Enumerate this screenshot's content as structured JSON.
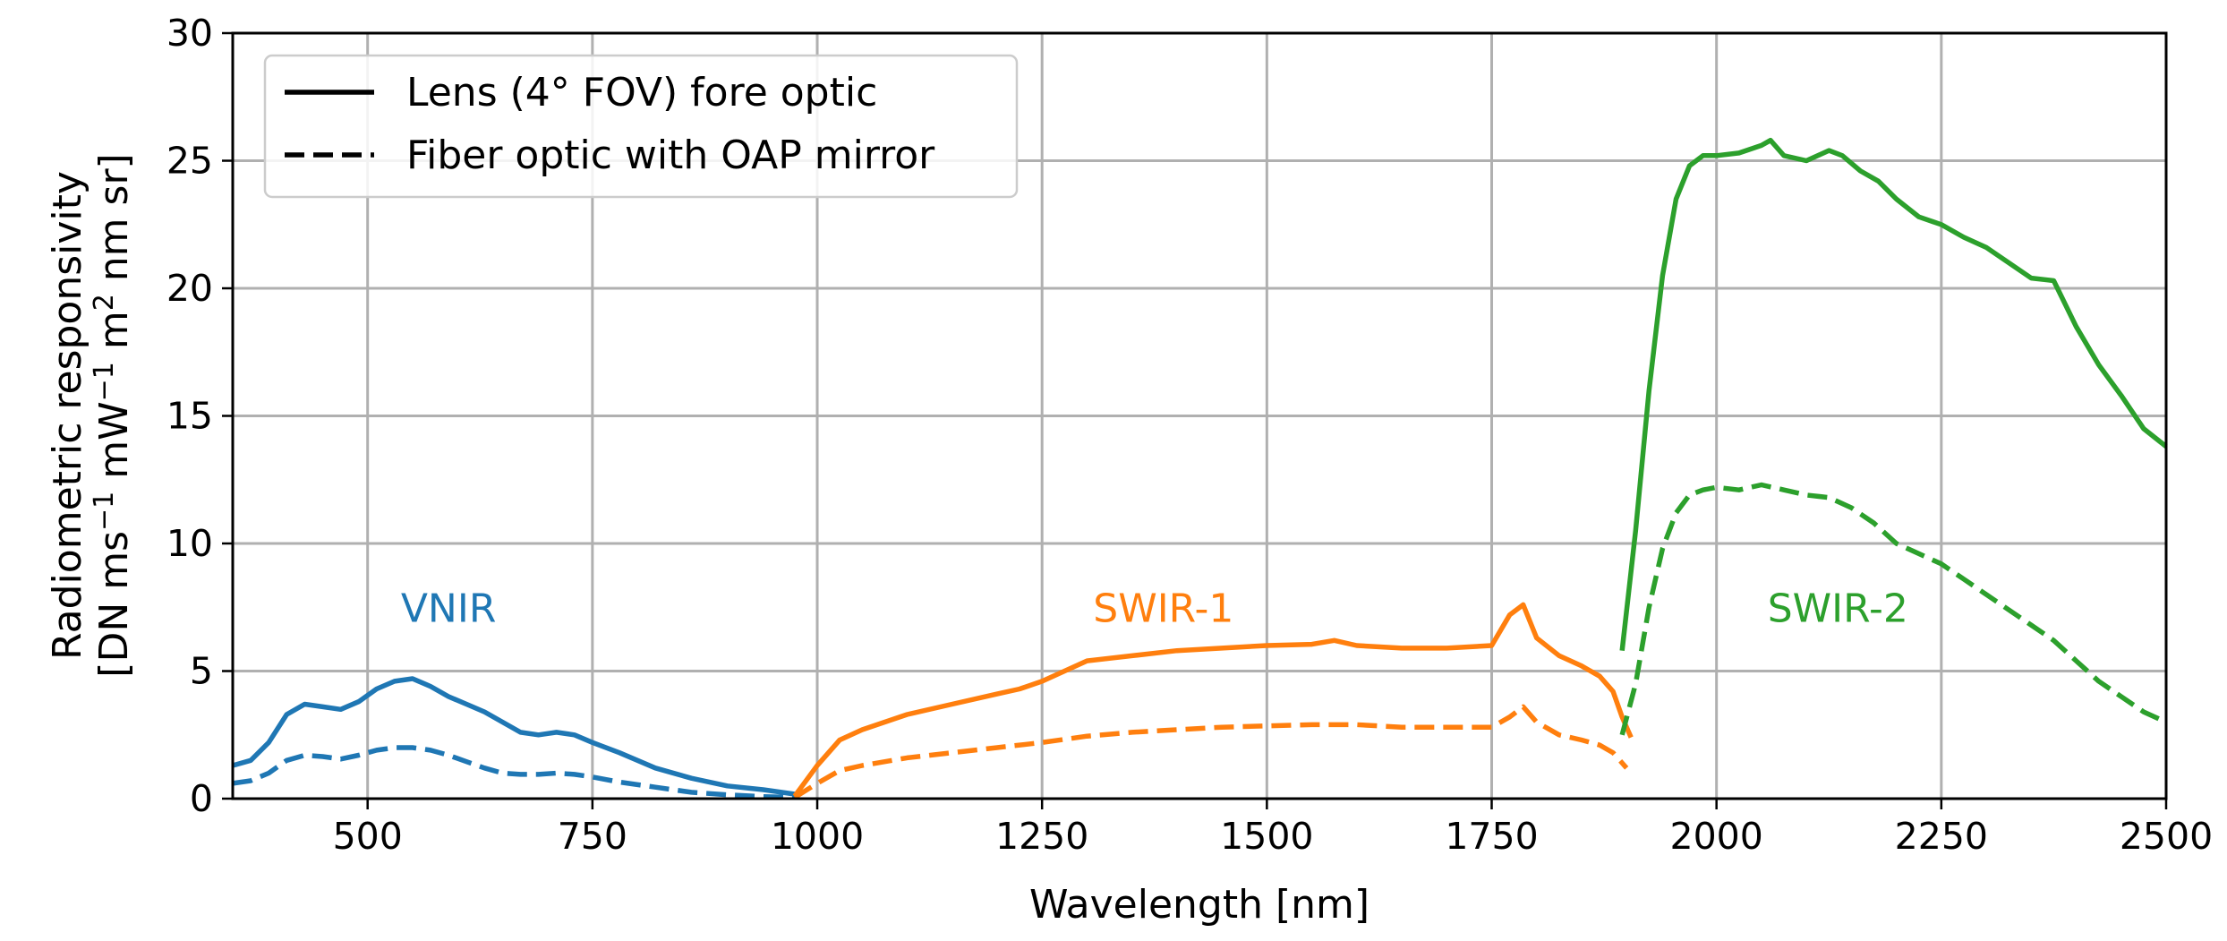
{
  "chart_data": {
    "type": "line",
    "title": "",
    "xlabel": "Wavelength [nm]",
    "ylabel_line1": "Radiometric responsivity",
    "ylabel_line2_prefix": "[DN ms",
    "ylabel_sup1": "−1",
    "ylabel_mid": " mW",
    "ylabel_sup2": "−1",
    "ylabel_mid2": " m",
    "ylabel_sup3": "2",
    "ylabel_suffix": " nm sr]",
    "xlim": [
      350,
      2500
    ],
    "ylim": [
      0,
      30
    ],
    "xticks": [
      500,
      750,
      1000,
      1250,
      1500,
      1750,
      2000,
      2250,
      2500
    ],
    "yticks": [
      0,
      5,
      10,
      15,
      20,
      25,
      30
    ],
    "grid": true,
    "legend": {
      "position": "top-left",
      "entries": [
        {
          "label": "Lens (4° FOV) fore optic",
          "style": "solid"
        },
        {
          "label": "Fiber optic with OAP mirror",
          "style": "dashed"
        }
      ]
    },
    "band_labels": [
      {
        "text": "VNIR",
        "color": "#1f77b4",
        "x": 590,
        "y": 7.5
      },
      {
        "text": "SWIR-1",
        "color": "#ff7f0e",
        "x": 1385,
        "y": 7.5
      },
      {
        "text": "SWIR-2",
        "color": "#2ca02c",
        "x": 2135,
        "y": 7.5
      }
    ],
    "series": [
      {
        "name": "VNIR lens",
        "band": "VNIR",
        "style": "solid",
        "color": "#1f77b4",
        "x": [
          350,
          370,
          390,
          410,
          430,
          450,
          470,
          490,
          510,
          530,
          550,
          570,
          590,
          610,
          630,
          650,
          670,
          690,
          710,
          730,
          750,
          780,
          820,
          860,
          900,
          940,
          980
        ],
        "y": [
          1.3,
          1.5,
          2.2,
          3.3,
          3.7,
          3.6,
          3.5,
          3.8,
          4.3,
          4.6,
          4.7,
          4.4,
          4.0,
          3.7,
          3.4,
          3.0,
          2.6,
          2.5,
          2.6,
          2.5,
          2.2,
          1.8,
          1.2,
          0.8,
          0.5,
          0.35,
          0.15
        ]
      },
      {
        "name": "VNIR fiber",
        "band": "VNIR",
        "style": "dashed",
        "color": "#1f77b4",
        "x": [
          350,
          370,
          390,
          410,
          430,
          450,
          470,
          490,
          510,
          530,
          550,
          570,
          590,
          610,
          630,
          650,
          670,
          690,
          710,
          730,
          750,
          780,
          820,
          860,
          900,
          940,
          980
        ],
        "y": [
          0.6,
          0.7,
          1.0,
          1.5,
          1.7,
          1.65,
          1.55,
          1.7,
          1.9,
          2.0,
          2.0,
          1.9,
          1.7,
          1.45,
          1.2,
          1.0,
          0.95,
          0.95,
          1.0,
          0.95,
          0.85,
          0.65,
          0.45,
          0.25,
          0.15,
          0.08,
          0.05
        ]
      },
      {
        "name": "SWIR-1 lens",
        "band": "SWIR-1",
        "style": "solid",
        "color": "#ff7f0e",
        "x": [
          975,
          1000,
          1025,
          1050,
          1100,
          1150,
          1200,
          1225,
          1250,
          1275,
          1300,
          1350,
          1400,
          1450,
          1500,
          1550,
          1575,
          1600,
          1650,
          1700,
          1750,
          1770,
          1785,
          1800,
          1825,
          1850,
          1870,
          1885,
          1895,
          1905
        ],
        "y": [
          0.1,
          1.3,
          2.3,
          2.7,
          3.3,
          3.7,
          4.1,
          4.3,
          4.6,
          5.0,
          5.4,
          5.6,
          5.8,
          5.9,
          6.0,
          6.05,
          6.2,
          6.0,
          5.9,
          5.9,
          6.0,
          7.2,
          7.6,
          6.3,
          5.6,
          5.2,
          4.8,
          4.2,
          3.2,
          2.4
        ]
      },
      {
        "name": "SWIR-1 fiber",
        "band": "SWIR-1",
        "style": "dashed",
        "color": "#ff7f0e",
        "x": [
          975,
          1000,
          1025,
          1050,
          1100,
          1150,
          1200,
          1250,
          1300,
          1350,
          1400,
          1450,
          1500,
          1550,
          1600,
          1650,
          1700,
          1750,
          1770,
          1785,
          1800,
          1825,
          1850,
          1870,
          1885,
          1900
        ],
        "y": [
          0.05,
          0.6,
          1.1,
          1.3,
          1.6,
          1.8,
          2.0,
          2.2,
          2.45,
          2.6,
          2.7,
          2.8,
          2.85,
          2.9,
          2.9,
          2.8,
          2.8,
          2.8,
          3.2,
          3.6,
          3.0,
          2.5,
          2.3,
          2.1,
          1.8,
          1.2
        ]
      },
      {
        "name": "SWIR-2 lens",
        "band": "SWIR-2",
        "style": "solid",
        "color": "#2ca02c",
        "x": [
          1895,
          1910,
          1925,
          1940,
          1955,
          1970,
          1985,
          2000,
          2025,
          2050,
          2060,
          2075,
          2100,
          2125,
          2140,
          2160,
          2180,
          2200,
          2225,
          2250,
          2275,
          2300,
          2325,
          2350,
          2375,
          2400,
          2425,
          2450,
          2475,
          2500
        ],
        "y": [
          5.8,
          10.5,
          16.0,
          20.5,
          23.5,
          24.8,
          25.2,
          25.2,
          25.3,
          25.6,
          25.8,
          25.2,
          25.0,
          25.4,
          25.2,
          24.6,
          24.2,
          23.5,
          22.8,
          22.5,
          22.0,
          21.6,
          21.0,
          20.4,
          20.3,
          18.5,
          17.0,
          15.8,
          14.5,
          13.8
        ]
      },
      {
        "name": "SWIR-2 fiber",
        "band": "SWIR-2",
        "style": "dashed",
        "color": "#2ca02c",
        "x": [
          1895,
          1910,
          1925,
          1940,
          1955,
          1970,
          1985,
          2000,
          2025,
          2050,
          2075,
          2100,
          2125,
          2150,
          2175,
          2200,
          2225,
          2250,
          2275,
          2300,
          2325,
          2350,
          2375,
          2400,
          2425,
          2450,
          2475,
          2500
        ],
        "y": [
          2.5,
          4.5,
          7.5,
          9.8,
          11.2,
          11.9,
          12.1,
          12.2,
          12.1,
          12.3,
          12.1,
          11.9,
          11.8,
          11.4,
          10.8,
          10.0,
          9.6,
          9.2,
          8.6,
          8.0,
          7.4,
          6.8,
          6.2,
          5.4,
          4.6,
          4.0,
          3.4,
          3.0
        ]
      }
    ]
  }
}
